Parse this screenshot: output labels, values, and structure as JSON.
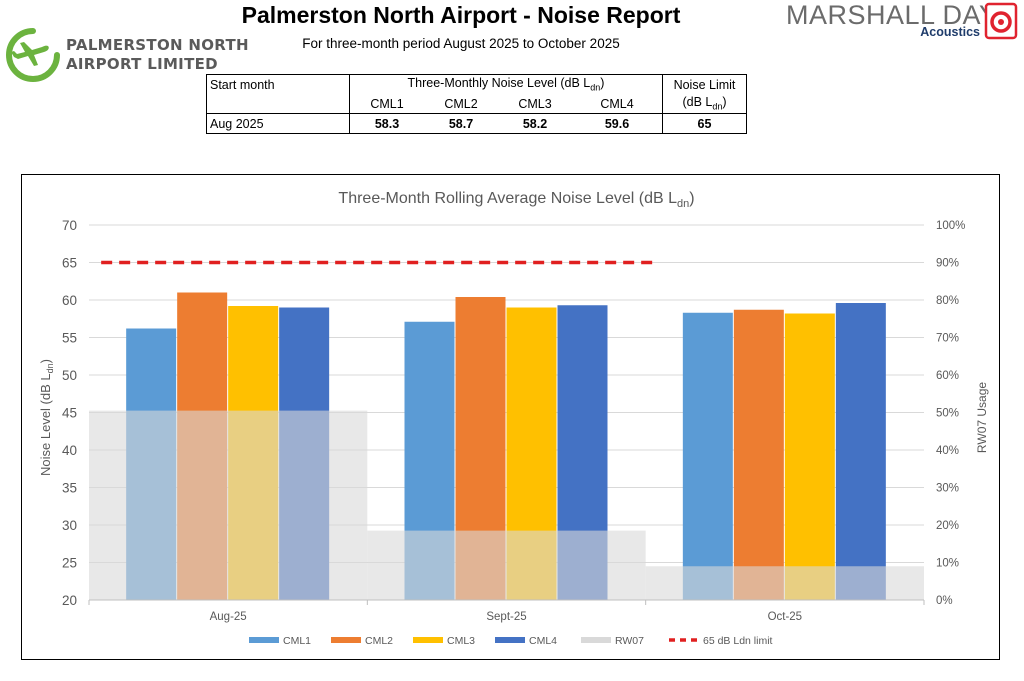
{
  "header": {
    "title": "Palmerston North Airport - Noise Report",
    "subtitle": "For three-month period August 2025 to October 2025"
  },
  "logos": {
    "left_line1": "PALMERSTON NORTH",
    "left_line2": "AIRPORT LIMITED",
    "left_color": "#6cb33f",
    "right_brand": "MARSHALL DAY",
    "right_sub": "Acoustics",
    "right_color": "#e0232f"
  },
  "summary_table": {
    "col_start": "Start month",
    "col_level_prefix": "Three-Monthly Noise Level (dB L",
    "col_level_sub": "dn",
    "col_level_suffix": ")",
    "col_limit": "Noise Limit",
    "col_limit_unit_prefix": "(dB L",
    "col_limit_unit_sub": "dn",
    "col_limit_unit_suffix": ")",
    "sub_headers": [
      "CML1",
      "CML2",
      "CML3",
      "CML4"
    ],
    "row_month": "Aug 2025",
    "row_values": [
      "58.3",
      "58.7",
      "58.2",
      "59.6"
    ],
    "row_limit": "65"
  },
  "chart_data": {
    "type": "bar",
    "title_prefix": "Three-Month Rolling Average Noise Level (dB L",
    "title_sub": "dn",
    "title_suffix": ")",
    "ylabel_prefix": "Noise Level (dB L",
    "ylabel_sub": "dn",
    "ylabel_suffix": ")",
    "y2label": "RW07 Usage",
    "categories": [
      "Aug-25",
      "Sept-25",
      "Oct-25"
    ],
    "ylim": [
      20,
      70
    ],
    "yticks": [
      "20",
      "25",
      "30",
      "35",
      "40",
      "45",
      "50",
      "55",
      "60",
      "65",
      "70"
    ],
    "y2lim": [
      0,
      100
    ],
    "y2ticks": [
      "0%",
      "10%",
      "20%",
      "30%",
      "40%",
      "50%",
      "60%",
      "70%",
      "80%",
      "90%",
      "100%"
    ],
    "series": [
      {
        "name": "CML1",
        "color": "#5b9bd5",
        "values": [
          56.2,
          57.1,
          58.3
        ]
      },
      {
        "name": "CML2",
        "color": "#ed7d31",
        "values": [
          61.0,
          60.4,
          58.7
        ]
      },
      {
        "name": "CML3",
        "color": "#ffc000",
        "values": [
          59.2,
          59.0,
          58.2
        ]
      },
      {
        "name": "CML4",
        "color": "#4472c4",
        "values": [
          59.0,
          59.3,
          59.6
        ]
      }
    ],
    "rw07": {
      "name": "RW07",
      "color": "#d9d9d9",
      "values": [
        50.5,
        18.5,
        9
      ]
    },
    "limit": {
      "name": "65 dB Ldn limit",
      "value": 65,
      "color": "#e02020"
    },
    "grid": true,
    "legend_position": "bottom"
  }
}
